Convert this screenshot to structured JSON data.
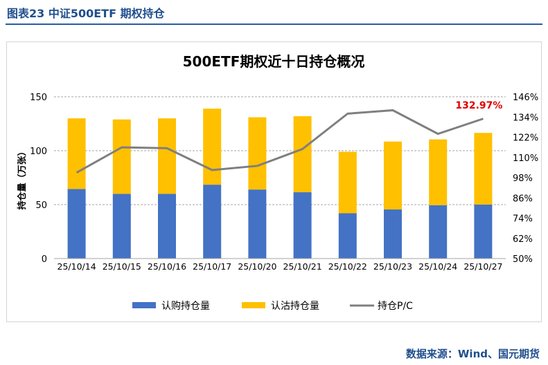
{
  "figure_caption": "图表23  中证500ETF 期权持仓",
  "source": "数据来源：Wind、国元期货",
  "chart_data": {
    "type": "bar+line",
    "title": "500ETF期权近十日持仓概况",
    "ylabel": "持仓量（万张）",
    "categories": [
      "25/10/14",
      "25/10/15",
      "25/10/16",
      "25/10/17",
      "25/10/20",
      "25/10/21",
      "25/10/22",
      "25/10/23",
      "25/10/24",
      "25/10/27"
    ],
    "series": [
      {
        "name": "认购持仓量",
        "kind": "bar",
        "stack": "total",
        "color": "#4472c4",
        "values": [
          64.5,
          60.0,
          60.0,
          68.5,
          64.0,
          61.5,
          42.0,
          45.5,
          49.5,
          50.0
        ]
      },
      {
        "name": "认沽持仓量",
        "kind": "bar",
        "stack": "total",
        "color": "#ffc000",
        "values": [
          65.5,
          69.0,
          70.0,
          70.5,
          67.0,
          70.5,
          57.0,
          63.0,
          61.0,
          66.5
        ]
      },
      {
        "name": "持仓P/C",
        "kind": "line",
        "axis": "right",
        "color": "#7f7f7f",
        "values": [
          101.0,
          116.0,
          115.5,
          102.5,
          105.0,
          115.0,
          136.0,
          138.0,
          124.0,
          132.97
        ]
      }
    ],
    "y_left": {
      "min": 0,
      "max": 150,
      "ticks": [
        0,
        50,
        100,
        150
      ]
    },
    "y_right": {
      "min": 50,
      "max": 146,
      "ticks": [
        "50%",
        "62%",
        "74%",
        "86%",
        "98%",
        "110%",
        "122%",
        "134%",
        "146%"
      ]
    },
    "annotation": {
      "text": "132.97%",
      "series": "持仓P/C",
      "index": 9,
      "color": "#e00000"
    },
    "legend_position": "bottom",
    "grid": true
  }
}
